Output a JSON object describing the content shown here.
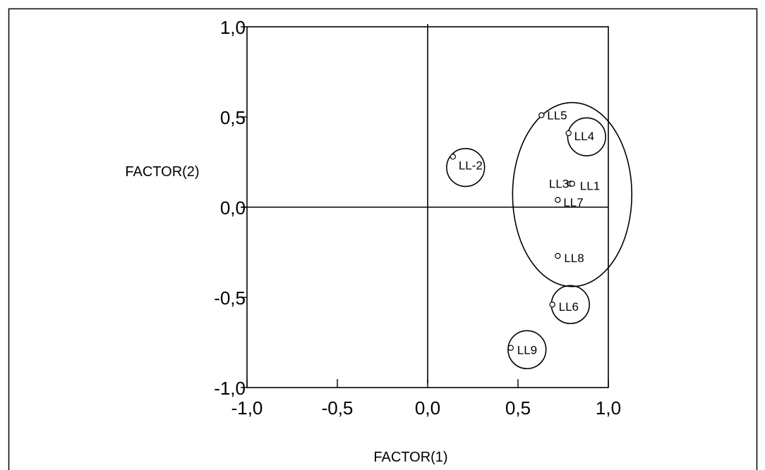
{
  "chart_data": {
    "type": "scatter",
    "title": "",
    "xlabel": "FACTOR(1)",
    "ylabel": "FACTOR(2)",
    "xlim": [
      -1.0,
      1.0
    ],
    "ylim": [
      -1.0,
      1.0
    ],
    "xticks": [
      -1.0,
      -0.5,
      0.0,
      0.5,
      1.0
    ],
    "yticks": [
      -1.0,
      -0.5,
      0.0,
      0.5,
      1.0
    ],
    "xtick_labels": [
      "-1,0",
      "-0,5",
      "0,0",
      "0,5",
      "1,0"
    ],
    "ytick_labels": [
      "-1,0",
      "-0,5",
      "0,0",
      "0,5",
      "1,0"
    ],
    "grid": false,
    "points": [
      {
        "label": "LL5",
        "x": 0.63,
        "y": 0.51
      },
      {
        "label": "LL4",
        "x": 0.78,
        "y": 0.41
      },
      {
        "label": "LL-2",
        "x": 0.14,
        "y": 0.28
      },
      {
        "label": "LL3",
        "x": 0.79,
        "y": 0.13
      },
      {
        "label": "LL1",
        "x": 0.8,
        "y": 0.13
      },
      {
        "label": "LL7",
        "x": 0.72,
        "y": 0.04
      },
      {
        "label": "LL8",
        "x": 0.72,
        "y": -0.27
      },
      {
        "label": "LL6",
        "x": 0.69,
        "y": -0.54
      },
      {
        "label": "LL9",
        "x": 0.46,
        "y": -0.78
      }
    ],
    "groupings": [
      {
        "shape": "ellipse",
        "members": [
          "LL5",
          "LL4",
          "LL3",
          "LL1",
          "LL7",
          "LL8"
        ],
        "cx": 0.8,
        "cy": 0.07,
        "rx": 0.33,
        "ry": 0.51
      },
      {
        "shape": "circle",
        "members": [
          "LL4"
        ],
        "cx": 0.88,
        "cy": 0.39,
        "r": 0.105
      },
      {
        "shape": "circle",
        "members": [
          "LL-2"
        ],
        "cx": 0.21,
        "cy": 0.22,
        "r": 0.105
      },
      {
        "shape": "circle",
        "members": [
          "LL6"
        ],
        "cx": 0.79,
        "cy": -0.54,
        "r": 0.105
      },
      {
        "shape": "circle",
        "members": [
          "LL9"
        ],
        "cx": 0.55,
        "cy": -0.79,
        "r": 0.105
      }
    ]
  }
}
